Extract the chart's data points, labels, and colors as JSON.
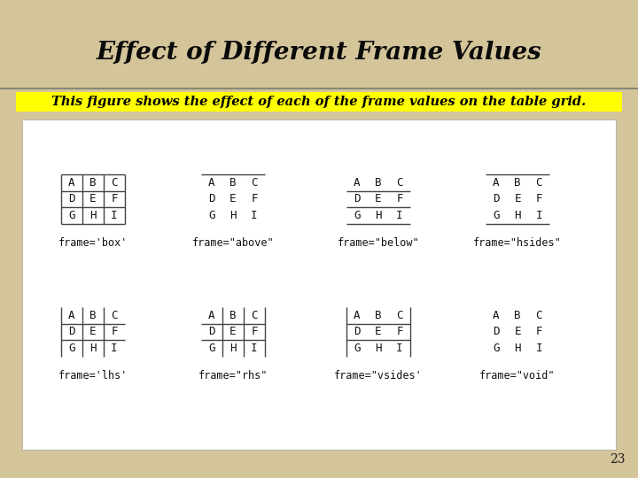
{
  "title": "Effect of Different Frame Values",
  "subtitle": "This figure shows the effect of each of the frame values on the table grid.",
  "bg_color": "#d4c49a",
  "header_bg": "#ffff00",
  "white_panel": "#f8f5ea",
  "white_content": "#ffffff",
  "table_data": [
    [
      "A",
      "B",
      "C"
    ],
    [
      "D",
      "E",
      "F"
    ],
    [
      "G",
      "H",
      "I"
    ]
  ],
  "frames": [
    {
      "label": "frame='box'",
      "top": true,
      "bottom": true,
      "left": true,
      "right": true,
      "inner_h": true,
      "inner_v": true
    },
    {
      "label": "frame=\"above\"",
      "top": true,
      "bottom": false,
      "left": false,
      "right": false,
      "inner_h": false,
      "inner_v": false
    },
    {
      "label": "frame=\"below\"",
      "top": false,
      "bottom": true,
      "left": false,
      "right": false,
      "inner_h": true,
      "inner_v": false
    },
    {
      "label": "frame=\"hsides\"",
      "top": true,
      "bottom": true,
      "left": false,
      "right": false,
      "inner_h": false,
      "inner_v": false
    },
    {
      "label": "frame='lhs'",
      "top": false,
      "bottom": false,
      "left": true,
      "right": false,
      "inner_h": true,
      "inner_v": true
    },
    {
      "label": "frame=\"rhs\"",
      "top": false,
      "bottom": false,
      "left": false,
      "right": true,
      "inner_h": true,
      "inner_v": true
    },
    {
      "label": "frame=\"vsides'",
      "top": false,
      "bottom": false,
      "left": true,
      "right": true,
      "inner_h": true,
      "inner_v": false
    },
    {
      "label": "frame=\"void\"",
      "top": false,
      "bottom": false,
      "left": false,
      "right": false,
      "inner_h": false,
      "inner_v": false
    }
  ],
  "page_number": "23",
  "title_fontsize": 20,
  "subtitle_fontsize": 10.5
}
